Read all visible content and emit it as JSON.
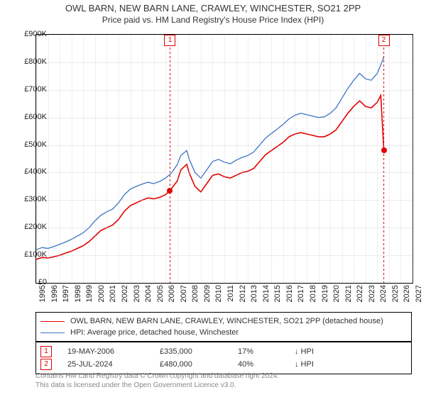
{
  "title": {
    "main": "OWL BARN, NEW BARN LANE, CRAWLEY, WINCHESTER, SO21 2PP",
    "sub": "Price paid vs. HM Land Registry's House Price Index (HPI)",
    "fontsize_main": 13,
    "fontsize_sub": 12
  },
  "chart": {
    "type": "line",
    "background_color": "#ffffff",
    "grid_color": "#bbbbbb",
    "axis_color": "#000000",
    "xlim": [
      1995,
      2027
    ],
    "ylim": [
      0,
      900000
    ],
    "yticks": [
      0,
      100000,
      200000,
      300000,
      400000,
      500000,
      600000,
      700000,
      800000,
      900000
    ],
    "ytick_labels": [
      "£0",
      "£100K",
      "£200K",
      "£300K",
      "£400K",
      "£500K",
      "£600K",
      "£700K",
      "£800K",
      "£900K"
    ],
    "xticks": [
      1995,
      1996,
      1997,
      1998,
      1999,
      2000,
      2001,
      2002,
      2003,
      2004,
      2005,
      2006,
      2007,
      2008,
      2009,
      2010,
      2011,
      2012,
      2013,
      2014,
      2015,
      2016,
      2017,
      2018,
      2019,
      2020,
      2021,
      2022,
      2023,
      2024,
      2025,
      2026,
      2027
    ],
    "series": [
      {
        "name": "subject",
        "label": "OWL BARN, NEW BARN LANE, CRAWLEY, WINCHESTER, SO21 2PP (detached house)",
        "color": "#e20000",
        "line_width": 1.6,
        "points": [
          [
            1995.0,
            85000
          ],
          [
            1995.5,
            92000
          ],
          [
            1996.0,
            90000
          ],
          [
            1996.5,
            95000
          ],
          [
            1997.0,
            100000
          ],
          [
            1997.5,
            108000
          ],
          [
            1998.0,
            115000
          ],
          [
            1998.5,
            125000
          ],
          [
            1999.0,
            135000
          ],
          [
            1999.5,
            150000
          ],
          [
            2000.0,
            170000
          ],
          [
            2000.5,
            190000
          ],
          [
            2001.0,
            200000
          ],
          [
            2001.5,
            210000
          ],
          [
            2002.0,
            230000
          ],
          [
            2002.5,
            260000
          ],
          [
            2003.0,
            280000
          ],
          [
            2003.5,
            290000
          ],
          [
            2004.0,
            300000
          ],
          [
            2004.5,
            308000
          ],
          [
            2005.0,
            305000
          ],
          [
            2005.5,
            310000
          ],
          [
            2006.0,
            320000
          ],
          [
            2006.38,
            335000
          ],
          [
            2007.0,
            370000
          ],
          [
            2007.3,
            410000
          ],
          [
            2007.8,
            430000
          ],
          [
            2008.0,
            400000
          ],
          [
            2008.5,
            350000
          ],
          [
            2009.0,
            330000
          ],
          [
            2009.5,
            360000
          ],
          [
            2010.0,
            390000
          ],
          [
            2010.5,
            395000
          ],
          [
            2011.0,
            385000
          ],
          [
            2011.5,
            380000
          ],
          [
            2012.0,
            390000
          ],
          [
            2012.5,
            400000
          ],
          [
            2013.0,
            405000
          ],
          [
            2013.5,
            415000
          ],
          [
            2014.0,
            440000
          ],
          [
            2014.5,
            465000
          ],
          [
            2015.0,
            480000
          ],
          [
            2015.5,
            495000
          ],
          [
            2016.0,
            510000
          ],
          [
            2016.5,
            530000
          ],
          [
            2017.0,
            540000
          ],
          [
            2017.5,
            545000
          ],
          [
            2018.0,
            540000
          ],
          [
            2018.5,
            535000
          ],
          [
            2019.0,
            530000
          ],
          [
            2019.5,
            530000
          ],
          [
            2020.0,
            540000
          ],
          [
            2020.5,
            555000
          ],
          [
            2021.0,
            585000
          ],
          [
            2021.5,
            615000
          ],
          [
            2022.0,
            640000
          ],
          [
            2022.5,
            660000
          ],
          [
            2023.0,
            640000
          ],
          [
            2023.5,
            635000
          ],
          [
            2024.0,
            655000
          ],
          [
            2024.3,
            680000
          ],
          [
            2024.56,
            480000
          ]
        ]
      },
      {
        "name": "hpi",
        "label": "HPI: Average price, detached house, Winchester",
        "color": "#3b74c4",
        "line_width": 1.3,
        "points": [
          [
            1995.0,
            120000
          ],
          [
            1995.5,
            128000
          ],
          [
            1996.0,
            125000
          ],
          [
            1996.5,
            132000
          ],
          [
            1997.0,
            140000
          ],
          [
            1997.5,
            148000
          ],
          [
            1998.0,
            158000
          ],
          [
            1998.5,
            170000
          ],
          [
            1999.0,
            182000
          ],
          [
            1999.5,
            200000
          ],
          [
            2000.0,
            225000
          ],
          [
            2000.5,
            245000
          ],
          [
            2001.0,
            258000
          ],
          [
            2001.5,
            268000
          ],
          [
            2002.0,
            290000
          ],
          [
            2002.5,
            320000
          ],
          [
            2003.0,
            340000
          ],
          [
            2003.5,
            350000
          ],
          [
            2004.0,
            358000
          ],
          [
            2004.5,
            365000
          ],
          [
            2005.0,
            360000
          ],
          [
            2005.5,
            368000
          ],
          [
            2006.0,
            380000
          ],
          [
            2006.5,
            398000
          ],
          [
            2007.0,
            430000
          ],
          [
            2007.3,
            462000
          ],
          [
            2007.8,
            480000
          ],
          [
            2008.0,
            450000
          ],
          [
            2008.5,
            400000
          ],
          [
            2009.0,
            380000
          ],
          [
            2009.5,
            410000
          ],
          [
            2010.0,
            440000
          ],
          [
            2010.5,
            448000
          ],
          [
            2011.0,
            438000
          ],
          [
            2011.5,
            432000
          ],
          [
            2012.0,
            445000
          ],
          [
            2012.5,
            455000
          ],
          [
            2013.0,
            462000
          ],
          [
            2013.5,
            475000
          ],
          [
            2014.0,
            500000
          ],
          [
            2014.5,
            525000
          ],
          [
            2015.0,
            542000
          ],
          [
            2015.5,
            558000
          ],
          [
            2016.0,
            575000
          ],
          [
            2016.5,
            595000
          ],
          [
            2017.0,
            608000
          ],
          [
            2017.5,
            615000
          ],
          [
            2018.0,
            610000
          ],
          [
            2018.5,
            605000
          ],
          [
            2019.0,
            600000
          ],
          [
            2019.5,
            602000
          ],
          [
            2020.0,
            615000
          ],
          [
            2020.5,
            635000
          ],
          [
            2021.0,
            670000
          ],
          [
            2021.5,
            705000
          ],
          [
            2022.0,
            735000
          ],
          [
            2022.5,
            760000
          ],
          [
            2023.0,
            740000
          ],
          [
            2023.5,
            735000
          ],
          [
            2024.0,
            760000
          ],
          [
            2024.3,
            790000
          ],
          [
            2024.56,
            820000
          ]
        ]
      }
    ],
    "sales": [
      {
        "idx": "1",
        "x": 2006.38,
        "marker_y_top": true,
        "dot_y": 335000,
        "color": "#e20000",
        "date": "19-MAY-2006",
        "price": "£335,000",
        "pct": "17%",
        "hpi_dir": "↓ HPI"
      },
      {
        "idx": "2",
        "x": 2024.56,
        "marker_y_top": true,
        "dot_y": 480000,
        "color": "#e20000",
        "date": "25-JUL-2024",
        "price": "£480,000",
        "pct": "40%",
        "hpi_dir": "↓ HPI"
      }
    ]
  },
  "legend": {
    "border_color": "#000000"
  },
  "footer": {
    "line1": "Contains HM Land Registry data © Crown copyright and database right 2024.",
    "line2": "This data is licensed under the Open Government Licence v3.0.",
    "color": "#888888"
  }
}
